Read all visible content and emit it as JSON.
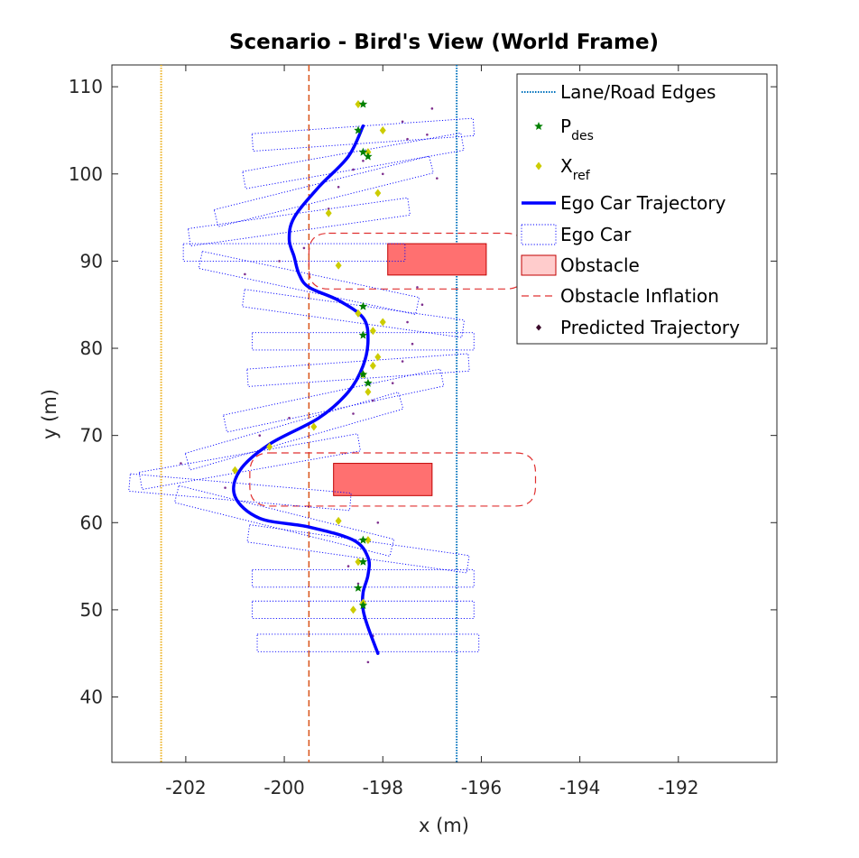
{
  "chart_data": {
    "type": "scatter",
    "title": "Scenario - Bird's View (World Frame)",
    "xlabel": "x (m)",
    "ylabel": "y (m)",
    "xlim": [
      -203.5,
      -190.0
    ],
    "ylim": [
      32.5,
      112.5
    ],
    "xticks": [
      -202,
      -200,
      -198,
      -196,
      -194,
      -192
    ],
    "xtick_labels": [
      "-202",
      "-200",
      "-198",
      "-196",
      "-194",
      "-192"
    ],
    "yticks": [
      40,
      50,
      60,
      70,
      80,
      90,
      100,
      110
    ],
    "ytick_labels": [
      "40",
      "50",
      "60",
      "70",
      "80",
      "90",
      "100",
      "110"
    ],
    "grid": false,
    "legend_position": "top-right",
    "legend": [
      {
        "key": "lane",
        "label": "Lane/Road Edges",
        "sub": ""
      },
      {
        "key": "pdes",
        "label": "P",
        "sub": "des"
      },
      {
        "key": "xref",
        "label": "X",
        "sub": "ref"
      },
      {
        "key": "ego_traj",
        "label": "Ego Car Trajectory",
        "sub": ""
      },
      {
        "key": "ego_car",
        "label": "Ego Car",
        "sub": ""
      },
      {
        "key": "obstacle",
        "label": "Obstacle",
        "sub": ""
      },
      {
        "key": "inflation",
        "label": "Obstacle Inflation",
        "sub": ""
      },
      {
        "key": "pred",
        "label": "Predicted Trajectory",
        "sub": ""
      }
    ],
    "colors": {
      "road_edge_left": "#EDB120",
      "center_line": "#D95319",
      "lane_edge_right": "#0072BD",
      "ego_trajectory": "#0000FF",
      "ego_car_outline": "#0000FF",
      "p_des": "#007F00",
      "x_ref": "#CCCC00",
      "obstacle_fill": "#FF7070",
      "obstacle_edge": "#C00000",
      "inflation": "#E03030",
      "predicted": "#7E2F8E"
    },
    "lane_lines": [
      {
        "name": "road-edge-left",
        "x": -202.5,
        "style": "dotted"
      },
      {
        "name": "center-line",
        "x": -199.5,
        "style": "dashed"
      },
      {
        "name": "lane-edge-right",
        "x": -196.5,
        "style": "dotted"
      }
    ],
    "obstacles": [
      {
        "x_min": -197.9,
        "x_max": -195.9,
        "y_min": 88.4,
        "y_max": 92.0
      },
      {
        "x_min": -199.0,
        "x_max": -197.0,
        "y_min": 63.1,
        "y_max": 66.8
      }
    ],
    "inflations": [
      {
        "x_min": -199.5,
        "x_max": -195.1,
        "y_min": 86.8,
        "y_max": 93.2
      },
      {
        "x_min": -200.7,
        "x_max": -194.9,
        "y_min": 61.9,
        "y_max": 68.0
      }
    ],
    "ego_trajectory": {
      "x": [
        -198.1,
        -198.3,
        -198.4,
        -198.4,
        -198.3,
        -198.3,
        -198.6,
        -199.5,
        -200.5,
        -201.0,
        -200.9,
        -200.3,
        -199.3,
        -198.7,
        -198.4,
        -198.3,
        -198.4,
        -198.9,
        -199.5,
        -199.7,
        -199.8,
        -199.9,
        -199.8,
        -199.3,
        -198.7,
        -198.4
      ],
      "y": [
        45.0,
        48.0,
        50.0,
        52.0,
        54.0,
        56.0,
        58.0,
        59.5,
        60.5,
        63.0,
        66.0,
        69.0,
        72.0,
        75.0,
        78.0,
        81.0,
        83.5,
        85.5,
        87.0,
        88.5,
        90.5,
        92.5,
        95.0,
        98.5,
        102.0,
        105.5
      ]
    },
    "p_des": {
      "x": [
        -198.4,
        -198.5,
        -198.4,
        -198.4,
        -198.3,
        -198.4,
        -198.4,
        -198.4,
        -198.3,
        -198.4,
        -198.5,
        -198.4
      ],
      "y": [
        50.5,
        52.5,
        55.5,
        58.0,
        76.0,
        77.0,
        81.5,
        84.8,
        102.0,
        102.5,
        105.0,
        108.0
      ]
    },
    "x_ref": {
      "x": [
        -198.6,
        -198.4,
        -198.5,
        -198.3,
        -198.9,
        -200.3,
        -201.0,
        -199.4,
        -198.9,
        -198.3,
        -198.4,
        -198.2,
        -198.1,
        -198.2,
        -198.0,
        -198.5,
        -199.1,
        -198.3,
        -198.0,
        -198.5,
        -198.1
      ],
      "y": [
        50.0,
        50.8,
        55.5,
        58.0,
        60.2,
        68.7,
        66.0,
        71.0,
        89.5,
        75.0,
        77.0,
        78.0,
        79.0,
        82.0,
        83.0,
        84.0,
        95.5,
        102.5,
        105.0,
        108.0,
        97.8
      ]
    },
    "predicted": {
      "x": [
        -198.7,
        -198.5,
        -198.2,
        -198.3,
        -198.1,
        -202.1,
        -201.2,
        -200.5,
        -199.9,
        -198.6,
        -198.2,
        -197.8,
        -197.6,
        -197.4,
        -197.5,
        -197.2,
        -197.3,
        -197.5,
        -198.6,
        -197.6,
        -197.0,
        -197.1,
        -196.9,
        -198.0,
        -199.6,
        -200.1,
        -200.8,
        -199.1,
        -198.9,
        -198.6,
        -198.4
      ],
      "y": [
        55.0,
        53.0,
        47.0,
        44.0,
        60.0,
        66.8,
        64.0,
        70.0,
        72.0,
        72.5,
        74.0,
        76.0,
        78.5,
        80.5,
        83.0,
        85.0,
        87.0,
        104.0,
        103.0,
        106.0,
        107.5,
        104.5,
        99.5,
        100.0,
        91.5,
        90.0,
        88.5,
        96.0,
        98.5,
        100.5,
        101.5
      ]
    },
    "ego_car_boxes": [
      {
        "cx": -198.3,
        "cy": 46.2,
        "angle_deg": 0
      },
      {
        "cx": -198.4,
        "cy": 50.0,
        "angle_deg": 0
      },
      {
        "cx": -198.4,
        "cy": 53.6,
        "angle_deg": 0
      },
      {
        "cx": -198.5,
        "cy": 57.0,
        "angle_deg": 8
      },
      {
        "cx": -200.0,
        "cy": 60.2,
        "angle_deg": 14
      },
      {
        "cx": -200.9,
        "cy": 63.5,
        "angle_deg": 5
      },
      {
        "cx": -200.7,
        "cy": 67.0,
        "angle_deg": -10
      },
      {
        "cx": -199.8,
        "cy": 70.5,
        "angle_deg": -16
      },
      {
        "cx": -199.0,
        "cy": 74.0,
        "angle_deg": -12
      },
      {
        "cx": -198.5,
        "cy": 77.5,
        "angle_deg": -4
      },
      {
        "cx": -198.4,
        "cy": 80.8,
        "angle_deg": 0
      },
      {
        "cx": -198.6,
        "cy": 84.0,
        "angle_deg": 8
      },
      {
        "cx": -199.5,
        "cy": 87.5,
        "angle_deg": 12
      },
      {
        "cx": -199.8,
        "cy": 91.0,
        "angle_deg": 0
      },
      {
        "cx": -199.7,
        "cy": 94.5,
        "angle_deg": -8
      },
      {
        "cx": -199.2,
        "cy": 98.0,
        "angle_deg": -14
      },
      {
        "cx": -198.6,
        "cy": 101.5,
        "angle_deg": -10
      },
      {
        "cx": -198.4,
        "cy": 104.5,
        "angle_deg": -4
      }
    ],
    "ego_car_length_m": 2.0,
    "ego_car_width_m": 4.5
  }
}
